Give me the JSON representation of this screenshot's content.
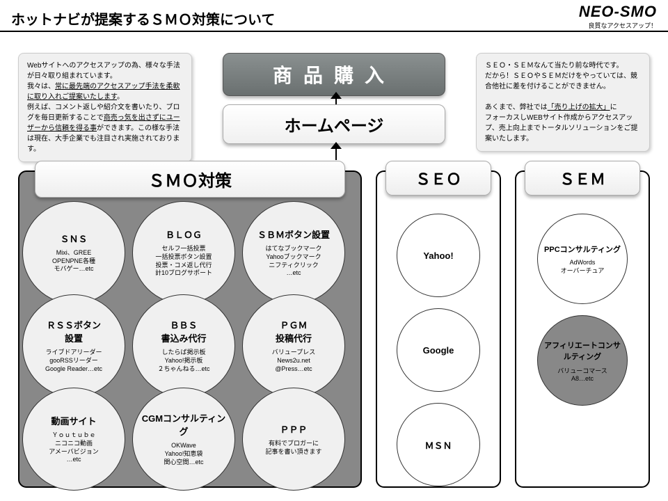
{
  "page": {
    "title": "ホットナビが提案するＳＭＯ対策について",
    "logo_main": "NEO-SMO",
    "logo_sub": "良質なアクセスアップ！"
  },
  "left_note": {
    "l1": "Webサイトへのアクセスアップの為、様々な手法が日々取り組まれています。",
    "l2a": "我々は、",
    "l2u": "常に最先端のアクセスアップ手法を柔軟に取り入れご提案いたします",
    "l2b": "。",
    "l3a": "例えば、コメント返しや紹介文を書いたり、ブログを毎日更新することで",
    "l3u": "商売っ気を出さずにユーザーから信頼を得る事",
    "l3b": "ができます。この様な手法は現在、大手企業でも注目され実施されております。"
  },
  "right_note": {
    "r1": "ＳＥＯ・ＳＥＭなんて当たり前な時代です。",
    "r2": "だから！ＳＥＯやＳＥＭだけをやっていては、競合他社に差を付けることができません。",
    "r3a": "あくまで、弊社では",
    "r3u": "「売り上げの拡大」",
    "r3b": "に",
    "r4": "フォーカスしWEBサイト作成からアクセスアップ、売上向上までトータルソリューションをご提案いたします。"
  },
  "banners": {
    "top": "商品購入",
    "homepage": "ホームページ"
  },
  "panels": {
    "smo": "ＳＭＯ対策",
    "seo": "ＳＥＯ",
    "sem": "ＳＥＭ"
  },
  "smo_circles": [
    {
      "title": "ＳＮＳ",
      "body": "Mixi、GREE\nOPENPNE各種\nモバゲー…etc"
    },
    {
      "title": "ＢＬＯＧ",
      "body": "セルフ一括投票\n一括投票ボタン設置\n投票・コメ返し代行\n計10ブログサポート"
    },
    {
      "title": "ＳＢＭボタン設置",
      "body": "はてなブックマーク\nYahooブックマーク\nニフティクリック\n…etc"
    },
    {
      "title": "ＲＳＳボタン\n設置",
      "body": "ライブドアリーダー\ngooRSSリーダー\nGoogle Reader…etc"
    },
    {
      "title": "ＢＢＳ\n書込み代行",
      "body": "したらば掲示板\nYahoo!掲示板\n２ちゃんねる…etc"
    },
    {
      "title": "ＰＧＭ\n投稿代行",
      "body": "バリュープレス\nNews2u.net\n@Press…etc"
    },
    {
      "title": "動画サイト",
      "body": "Ｙｏｕｔｕｂｅ\nニコニコ動画\nアメーバビジョン\n…etc"
    },
    {
      "title": "CGMコンサルティング",
      "body": "OKWave\nYahoo!知恵袋\n関心空間…etc"
    },
    {
      "title": "ＰＰＰ",
      "body": "有料でブロガーに\n記事を書い頂きます"
    }
  ],
  "seo_circles": [
    "Yahoo!",
    "Google",
    "ＭＳＮ"
  ],
  "sem_circles": [
    {
      "title": "PPCコンサルティング",
      "body": "AdWords\nオーバーチュア",
      "dark": false
    },
    {
      "title": "アフィリエートコンサルティング",
      "body": "バリューコマース\nA8…etc",
      "dark": true
    }
  ],
  "colors": {
    "panel_bg": "#888888",
    "circle_bg": "#f0f0f0",
    "note_bg": "#f0f0f0",
    "top_banner_from": "#8a9090",
    "top_banner_to": "#6a7070",
    "border": "#000000"
  }
}
